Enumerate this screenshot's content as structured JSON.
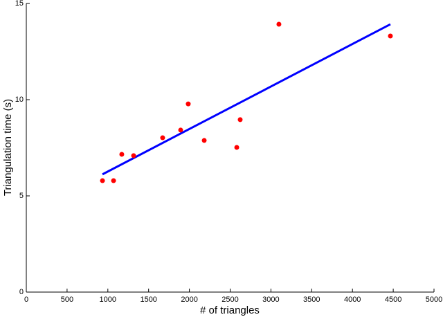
{
  "chart_data": {
    "type": "scatter",
    "xlabel": "# of triangles",
    "ylabel": "Triangulation time (s)",
    "xlim": [
      0,
      5000
    ],
    "ylim": [
      0,
      15
    ],
    "xticks": [
      0,
      500,
      1000,
      1500,
      2000,
      2500,
      3000,
      3500,
      4000,
      4500,
      5000
    ],
    "yticks": [
      0,
      5,
      10,
      15
    ],
    "points": {
      "color": "#ff0000",
      "x": [
        934,
        1070,
        1171,
        1316,
        1672,
        1893,
        1986,
        2182,
        2581,
        2623,
        3098,
        4465
      ],
      "y": [
        5.79,
        5.79,
        7.16,
        7.09,
        8.02,
        8.42,
        9.78,
        7.88,
        7.52,
        8.96,
        13.92,
        13.31
      ]
    },
    "fit_line": {
      "color": "#0000ff",
      "x": [
        934,
        4465
      ],
      "y": [
        6.12,
        13.92
      ]
    }
  }
}
